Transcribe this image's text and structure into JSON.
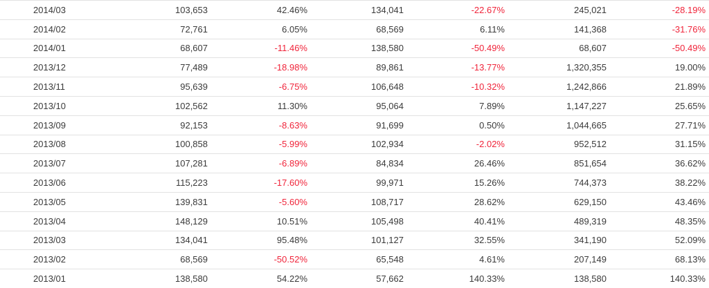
{
  "rows": [
    {
      "month": "2014/03",
      "v1": "103,653",
      "p1": "42.46%",
      "v2": "134,041",
      "p2": "-22.67%",
      "v3": "245,021",
      "p3": "-28.19%"
    },
    {
      "month": "2014/02",
      "v1": "72,761",
      "p1": "6.05%",
      "v2": "68,569",
      "p2": "6.11%",
      "v3": "141,368",
      "p3": "-31.76%"
    },
    {
      "month": "2014/01",
      "v1": "68,607",
      "p1": "-11.46%",
      "v2": "138,580",
      "p2": "-50.49%",
      "v3": "68,607",
      "p3": "-50.49%"
    },
    {
      "month": "2013/12",
      "v1": "77,489",
      "p1": "-18.98%",
      "v2": "89,861",
      "p2": "-13.77%",
      "v3": "1,320,355",
      "p3": "19.00%"
    },
    {
      "month": "2013/11",
      "v1": "95,639",
      "p1": "-6.75%",
      "v2": "106,648",
      "p2": "-10.32%",
      "v3": "1,242,866",
      "p3": "21.89%"
    },
    {
      "month": "2013/10",
      "v1": "102,562",
      "p1": "11.30%",
      "v2": "95,064",
      "p2": "7.89%",
      "v3": "1,147,227",
      "p3": "25.65%"
    },
    {
      "month": "2013/09",
      "v1": "92,153",
      "p1": "-8.63%",
      "v2": "91,699",
      "p2": "0.50%",
      "v3": "1,044,665",
      "p3": "27.71%"
    },
    {
      "month": "2013/08",
      "v1": "100,858",
      "p1": "-5.99%",
      "v2": "102,934",
      "p2": "-2.02%",
      "v3": "952,512",
      "p3": "31.15%"
    },
    {
      "month": "2013/07",
      "v1": "107,281",
      "p1": "-6.89%",
      "v2": "84,834",
      "p2": "26.46%",
      "v3": "851,654",
      "p3": "36.62%"
    },
    {
      "month": "2013/06",
      "v1": "115,223",
      "p1": "-17.60%",
      "v2": "99,971",
      "p2": "15.26%",
      "v3": "744,373",
      "p3": "38.22%"
    },
    {
      "month": "2013/05",
      "v1": "139,831",
      "p1": "-5.60%",
      "v2": "108,717",
      "p2": "28.62%",
      "v3": "629,150",
      "p3": "43.46%"
    },
    {
      "month": "2013/04",
      "v1": "148,129",
      "p1": "10.51%",
      "v2": "105,498",
      "p2": "40.41%",
      "v3": "489,319",
      "p3": "48.35%"
    },
    {
      "month": "2013/03",
      "v1": "134,041",
      "p1": "95.48%",
      "v2": "101,127",
      "p2": "32.55%",
      "v3": "341,190",
      "p3": "52.09%"
    },
    {
      "month": "2013/02",
      "v1": "68,569",
      "p1": "-50.52%",
      "v2": "65,548",
      "p2": "4.61%",
      "v3": "207,149",
      "p3": "68.13%"
    },
    {
      "month": "2013/01",
      "v1": "138,580",
      "p1": "54.22%",
      "v2": "57,662",
      "p2": "140.33%",
      "v3": "138,580",
      "p3": "140.33%"
    }
  ],
  "colors": {
    "negative": "#f0243a",
    "text": "#3a3a3a",
    "border": "#e2e2e2"
  }
}
